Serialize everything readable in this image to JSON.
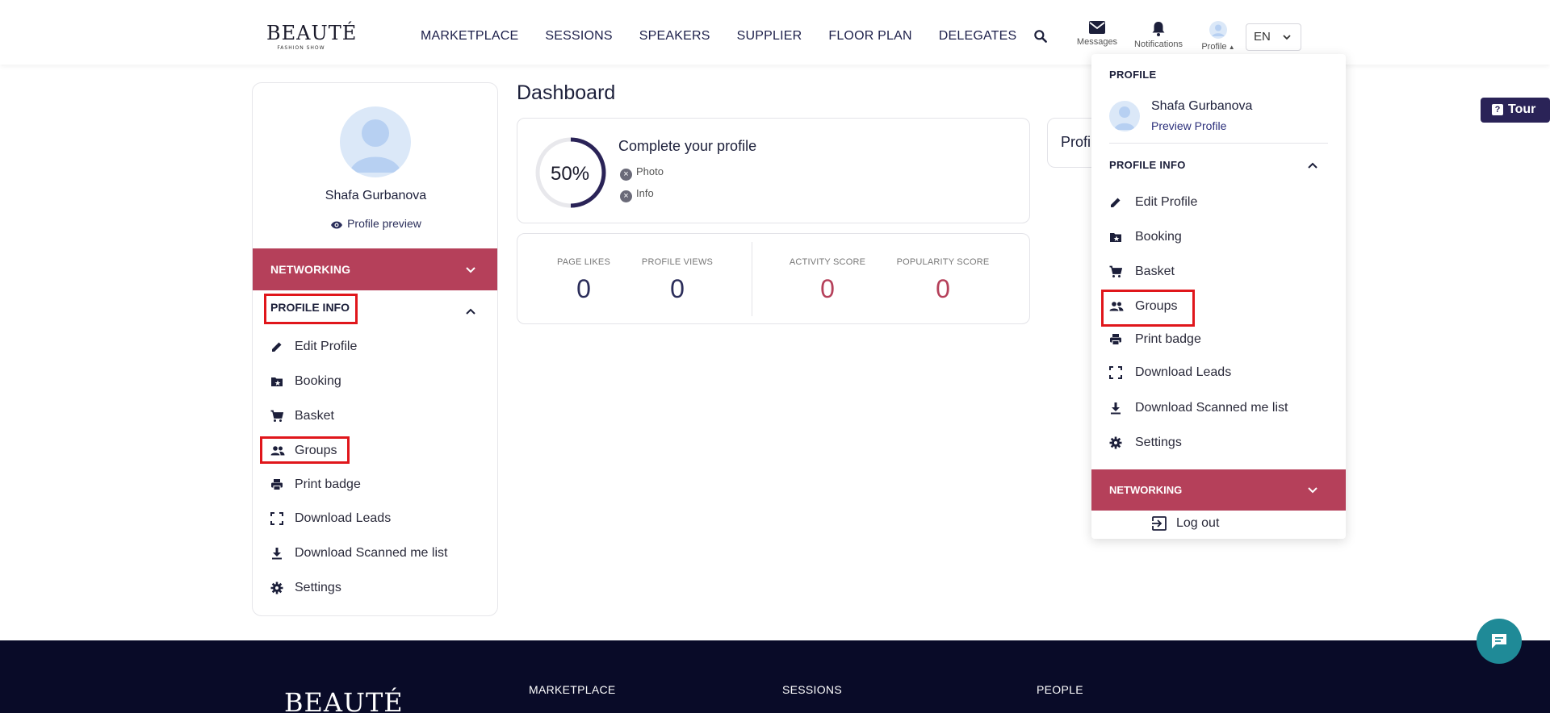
{
  "brand": {
    "logo_main": "BEAUTÉ",
    "logo_sub": "FASHION SHOW"
  },
  "nav": {
    "items": [
      "MARKETPLACE",
      "SESSIONS",
      "SPEAKERS",
      "SUPPLIER",
      "FLOOR PLAN",
      "DELEGATES"
    ],
    "messages": "Messages",
    "notifications": "Notifications",
    "profile": "Profile",
    "language": "EN"
  },
  "tour": {
    "label": "Tour",
    "icon": "question-icon"
  },
  "sidebar": {
    "user_name": "Shafa Gurbanova",
    "preview_label": "Profile preview",
    "networking_label": "NETWORKING",
    "profile_info_label": "PROFILE INFO",
    "menu": [
      {
        "label": "Edit Profile",
        "icon": "pencil-icon"
      },
      {
        "label": "Booking",
        "icon": "folder-star-icon"
      },
      {
        "label": "Basket",
        "icon": "cart-icon"
      },
      {
        "label": "Groups",
        "icon": "people-icon"
      },
      {
        "label": "Print badge",
        "icon": "printer-icon"
      },
      {
        "label": "Download Leads",
        "icon": "scan-frame-icon"
      },
      {
        "label": "Download Scanned me list",
        "icon": "download-icon"
      },
      {
        "label": "Settings",
        "icon": "gear-icon"
      }
    ]
  },
  "dashboard": {
    "title": "Dashboard",
    "profile_completion": {
      "percent_label": "50%",
      "percent": 50,
      "title": "Complete your profile",
      "items": [
        "Photo",
        "Info"
      ]
    },
    "stats": [
      {
        "label": "PAGE LIKES",
        "value": "0",
        "color": "#2b2d5a"
      },
      {
        "label": "PROFILE VIEWS",
        "value": "0",
        "color": "#2b2d5a"
      },
      {
        "label": "ACTIVITY SCORE",
        "value": "0",
        "color": "#b5405a"
      },
      {
        "label": "POPULARITY SCORE",
        "value": "0",
        "color": "#b5405a"
      }
    ],
    "partial_card_label": "Profi"
  },
  "dropdown": {
    "header": "PROFILE",
    "user_name": "Shafa Gurbanova",
    "preview_label": "Preview Profile",
    "profile_info_label": "PROFILE INFO",
    "menu": [
      {
        "label": "Edit Profile",
        "icon": "pencil-icon"
      },
      {
        "label": "Booking",
        "icon": "folder-star-icon"
      },
      {
        "label": "Basket",
        "icon": "cart-icon"
      },
      {
        "label": "Groups",
        "icon": "people-icon"
      },
      {
        "label": "Print badge",
        "icon": "printer-icon"
      },
      {
        "label": "Download Leads",
        "icon": "scan-frame-icon"
      },
      {
        "label": "Download Scanned me list",
        "icon": "download-icon"
      },
      {
        "label": "Settings",
        "icon": "gear-icon"
      }
    ],
    "networking_label": "NETWORKING",
    "logout_label": "Log out"
  },
  "footer": {
    "logo": "BEAUTÉ",
    "columns": [
      "MARKETPLACE",
      "SESSIONS",
      "PEOPLE"
    ]
  },
  "colors": {
    "accent": "#b5405a",
    "navy": "#2a2357",
    "footer": "#090b28",
    "chat": "#1f8a97",
    "highlight": "#e0161b"
  }
}
